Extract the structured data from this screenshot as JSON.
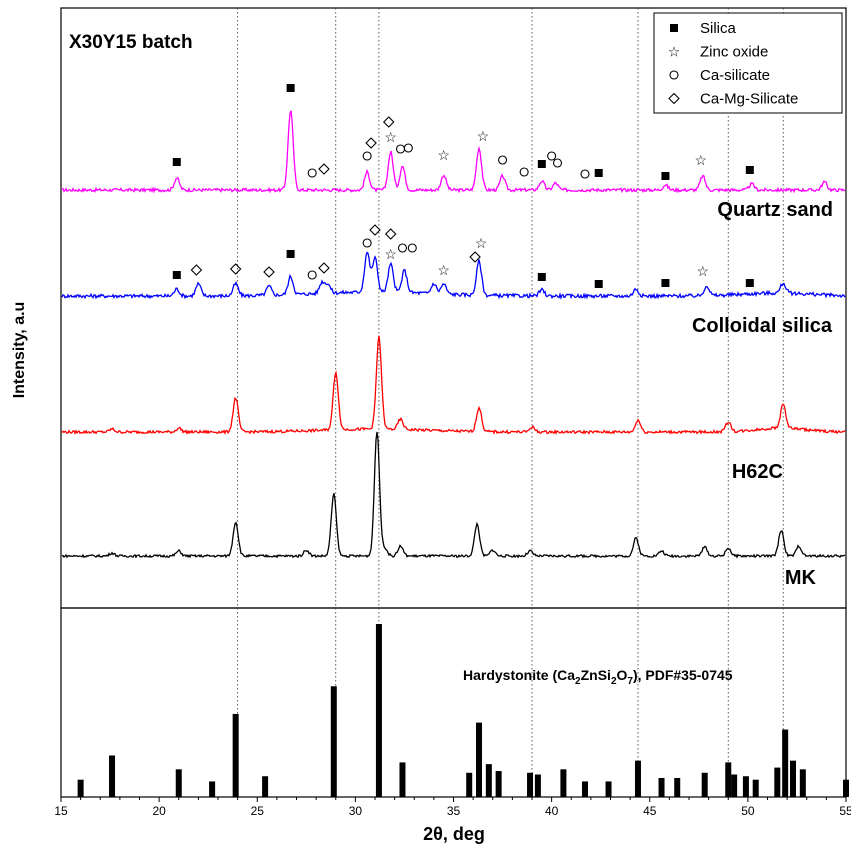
{
  "chart_data": [
    {
      "type": "line",
      "panel": "diffraction-patterns",
      "title": "X30Y15 batch",
      "ylabel": "Intensity, a.u",
      "xlim": [
        15,
        55
      ],
      "y_ticks_shown": false,
      "reference_lines_x": [
        24,
        29,
        31.2,
        39,
        44.4,
        49,
        51.8
      ],
      "legend": {
        "position": "top-right",
        "entries": [
          {
            "label": "Silica",
            "marker": "■"
          },
          {
            "label": "Zinc oxide",
            "marker": "☆"
          },
          {
            "label": "Ca-silicate",
            "marker": "○"
          },
          {
            "label": "Ca-Mg-Silicate",
            "marker": "◇"
          }
        ]
      },
      "series": [
        {
          "name": "Quartz sand",
          "color": "#ff00ff",
          "peaks": [
            {
              "x": 20.9,
              "h": 12
            },
            {
              "x": 26.7,
              "h": 80
            },
            {
              "x": 30.6,
              "h": 18
            },
            {
              "x": 31.8,
              "h": 38
            },
            {
              "x": 32.4,
              "h": 24
            },
            {
              "x": 34.5,
              "h": 15
            },
            {
              "x": 36.3,
              "h": 42
            },
            {
              "x": 37.5,
              "h": 14
            },
            {
              "x": 39.5,
              "h": 9
            },
            {
              "x": 40.2,
              "h": 7
            },
            {
              "x": 45.8,
              "h": 5
            },
            {
              "x": 47.7,
              "h": 14
            },
            {
              "x": 50.2,
              "h": 6
            },
            {
              "x": 53.9,
              "h": 8
            }
          ],
          "markers": [
            {
              "x": 20.9,
              "symbol": "■"
            },
            {
              "x": 26.7,
              "symbol": "■"
            },
            {
              "x": 27.8,
              "symbol": "○"
            },
            {
              "x": 28.4,
              "symbol": "◇"
            },
            {
              "x": 30.6,
              "symbol": "○"
            },
            {
              "x": 30.8,
              "symbol": "◇"
            },
            {
              "x": 31.7,
              "symbol": "◇"
            },
            {
              "x": 31.8,
              "symbol": "☆"
            },
            {
              "x": 32.3,
              "symbol": "○"
            },
            {
              "x": 32.7,
              "symbol": "○"
            },
            {
              "x": 34.5,
              "symbol": "☆"
            },
            {
              "x": 36.5,
              "symbol": "☆"
            },
            {
              "x": 37.5,
              "symbol": "○"
            },
            {
              "x": 38.6,
              "symbol": "○"
            },
            {
              "x": 39.5,
              "symbol": "■"
            },
            {
              "x": 40.0,
              "symbol": "○"
            },
            {
              "x": 40.3,
              "symbol": "○"
            },
            {
              "x": 41.7,
              "symbol": "○"
            },
            {
              "x": 42.4,
              "symbol": "■"
            },
            {
              "x": 45.8,
              "symbol": "■"
            },
            {
              "x": 47.6,
              "symbol": "☆"
            },
            {
              "x": 50.1,
              "symbol": "■"
            }
          ]
        },
        {
          "name": "Colloidal silica",
          "color": "#0000ff",
          "peaks": [
            {
              "x": 20.9,
              "h": 7
            },
            {
              "x": 22.0,
              "h": 12
            },
            {
              "x": 23.9,
              "h": 12
            },
            {
              "x": 25.6,
              "h": 9
            },
            {
              "x": 26.7,
              "h": 18
            },
            {
              "x": 28.3,
              "h": 11
            },
            {
              "x": 28.6,
              "h": 9
            },
            {
              "x": 30.6,
              "h": 40
            },
            {
              "x": 31.0,
              "h": 34
            },
            {
              "x": 31.8,
              "h": 28
            },
            {
              "x": 32.5,
              "h": 22
            },
            {
              "x": 34.0,
              "h": 10
            },
            {
              "x": 34.5,
              "h": 10
            },
            {
              "x": 36.3,
              "h": 34
            },
            {
              "x": 39.5,
              "h": 6
            },
            {
              "x": 44.3,
              "h": 7
            },
            {
              "x": 47.9,
              "h": 10
            },
            {
              "x": 51.8,
              "h": 10
            }
          ],
          "markers": [
            {
              "x": 20.9,
              "symbol": "■"
            },
            {
              "x": 21.9,
              "symbol": "◇"
            },
            {
              "x": 23.9,
              "symbol": "◇"
            },
            {
              "x": 25.6,
              "symbol": "◇"
            },
            {
              "x": 26.7,
              "symbol": "■"
            },
            {
              "x": 27.8,
              "symbol": "○"
            },
            {
              "x": 28.4,
              "symbol": "◇"
            },
            {
              "x": 30.6,
              "symbol": "○"
            },
            {
              "x": 31.0,
              "symbol": "◇"
            },
            {
              "x": 31.8,
              "symbol": "◇"
            },
            {
              "x": 31.8,
              "symbol": "☆"
            },
            {
              "x": 32.4,
              "symbol": "○"
            },
            {
              "x": 32.9,
              "symbol": "○"
            },
            {
              "x": 34.5,
              "symbol": "☆"
            },
            {
              "x": 36.1,
              "symbol": "◇"
            },
            {
              "x": 36.4,
              "symbol": "☆"
            },
            {
              "x": 39.5,
              "symbol": "■"
            },
            {
              "x": 42.4,
              "symbol": "■"
            },
            {
              "x": 45.8,
              "symbol": "■"
            },
            {
              "x": 47.7,
              "symbol": "☆"
            },
            {
              "x": 50.1,
              "symbol": "■"
            }
          ]
        },
        {
          "name": "H62C",
          "color": "#ff0000",
          "peaks": [
            {
              "x": 17.6,
              "h": 3
            },
            {
              "x": 21.0,
              "h": 4
            },
            {
              "x": 23.9,
              "h": 34
            },
            {
              "x": 29.0,
              "h": 58
            },
            {
              "x": 31.2,
              "h": 92
            },
            {
              "x": 32.3,
              "h": 10
            },
            {
              "x": 36.3,
              "h": 24
            },
            {
              "x": 39.0,
              "h": 5
            },
            {
              "x": 44.4,
              "h": 12
            },
            {
              "x": 49.0,
              "h": 10
            },
            {
              "x": 51.8,
              "h": 24
            }
          ]
        },
        {
          "name": "MK",
          "color": "#000000",
          "peaks": [
            {
              "x": 17.6,
              "h": 3
            },
            {
              "x": 21.0,
              "h": 5
            },
            {
              "x": 23.9,
              "h": 34
            },
            {
              "x": 27.5,
              "h": 6
            },
            {
              "x": 28.9,
              "h": 62
            },
            {
              "x": 31.1,
              "h": 125
            },
            {
              "x": 31.5,
              "h": 8
            },
            {
              "x": 32.3,
              "h": 10
            },
            {
              "x": 36.2,
              "h": 32
            },
            {
              "x": 37.0,
              "h": 6
            },
            {
              "x": 38.9,
              "h": 5
            },
            {
              "x": 44.3,
              "h": 18
            },
            {
              "x": 45.6,
              "h": 5
            },
            {
              "x": 47.8,
              "h": 9
            },
            {
              "x": 49.0,
              "h": 8
            },
            {
              "x": 51.7,
              "h": 26
            },
            {
              "x": 52.6,
              "h": 10
            }
          ]
        }
      ]
    },
    {
      "type": "bar",
      "panel": "reference-pattern",
      "label_text": {
        "pre": "Hardystonite (Ca",
        "sub1": "2",
        "mid1": "ZnSi",
        "sub2": "2",
        "mid2": "O",
        "sub3": "7",
        "post": "), PDF#35-0745"
      },
      "xlabel": "2θ, deg",
      "xlim": [
        15,
        55
      ],
      "x_ticks": [
        15,
        20,
        25,
        30,
        35,
        40,
        45,
        50,
        55
      ],
      "ylim": [
        0,
        100
      ],
      "bars": [
        {
          "x": 16.0,
          "y": 10
        },
        {
          "x": 17.6,
          "y": 24
        },
        {
          "x": 21.0,
          "y": 16
        },
        {
          "x": 22.7,
          "y": 9
        },
        {
          "x": 23.9,
          "y": 48
        },
        {
          "x": 25.4,
          "y": 12
        },
        {
          "x": 28.9,
          "y": 64
        },
        {
          "x": 31.2,
          "y": 100
        },
        {
          "x": 32.4,
          "y": 20
        },
        {
          "x": 35.8,
          "y": 14
        },
        {
          "x": 36.3,
          "y": 43
        },
        {
          "x": 36.8,
          "y": 19
        },
        {
          "x": 37.3,
          "y": 15
        },
        {
          "x": 38.9,
          "y": 14
        },
        {
          "x": 39.3,
          "y": 13
        },
        {
          "x": 40.6,
          "y": 16
        },
        {
          "x": 41.7,
          "y": 9
        },
        {
          "x": 42.9,
          "y": 9
        },
        {
          "x": 44.4,
          "y": 21
        },
        {
          "x": 45.6,
          "y": 11
        },
        {
          "x": 46.4,
          "y": 11
        },
        {
          "x": 47.8,
          "y": 14
        },
        {
          "x": 49.0,
          "y": 20
        },
        {
          "x": 49.3,
          "y": 13
        },
        {
          "x": 49.9,
          "y": 12
        },
        {
          "x": 50.4,
          "y": 10
        },
        {
          "x": 51.5,
          "y": 17
        },
        {
          "x": 51.9,
          "y": 39
        },
        {
          "x": 52.3,
          "y": 21
        },
        {
          "x": 52.8,
          "y": 16
        },
        {
          "x": 55.0,
          "y": 10
        }
      ]
    }
  ]
}
